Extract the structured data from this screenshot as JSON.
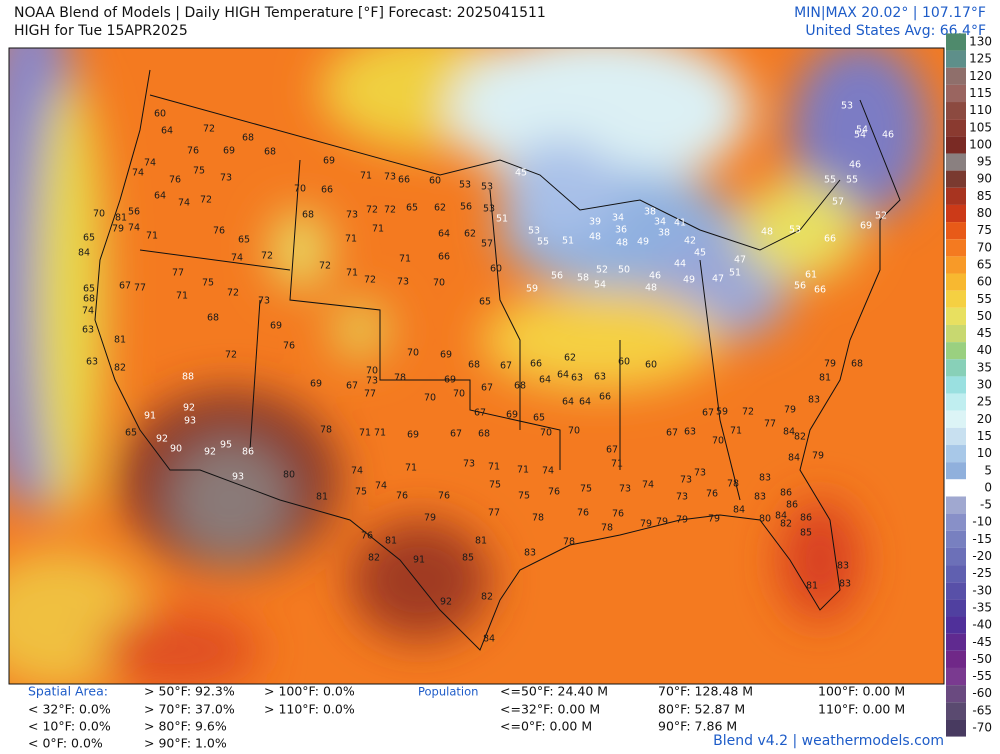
{
  "header": {
    "title": "NOAA Blend of Models | Daily HIGH Temperature [°F] Forecast: 2025041511",
    "subtitle": "HIGH for Tue 15APR2025",
    "minmax": "MIN|MAX 20.02° | 107.17°F",
    "average": "United States Avg: 66.4°F"
  },
  "map": {
    "stations": [
      60,
      64,
      72,
      68,
      76,
      69,
      68,
      74,
      75,
      73,
      74,
      76,
      64,
      74,
      72,
      70,
      81,
      56,
      79,
      74,
      65,
      71,
      76,
      65,
      84,
      74,
      72,
      77,
      75,
      72,
      71,
      67,
      77,
      65,
      68,
      68,
      73,
      74,
      63,
      81,
      63,
      82,
      72,
      69,
      76,
      88,
      92,
      91,
      93,
      65,
      92,
      90,
      95,
      92,
      86,
      93,
      69,
      71,
      73,
      66,
      66,
      70,
      73,
      72,
      72,
      65,
      62,
      56,
      53,
      60,
      53,
      53,
      45,
      51,
      68,
      71,
      71,
      64,
      62,
      57,
      72,
      71,
      72,
      71,
      73,
      70,
      66,
      60,
      65,
      59,
      56,
      58,
      54,
      53,
      55,
      51,
      39,
      48,
      34,
      36,
      48,
      49,
      38,
      34,
      38,
      41,
      42,
      45,
      44,
      46,
      52,
      50,
      48,
      49,
      47,
      51,
      47,
      48,
      53,
      57,
      55,
      55,
      46,
      54,
      53,
      54,
      46,
      52,
      69,
      66,
      61,
      66,
      56,
      71,
      73,
      71,
      71,
      74,
      76,
      76,
      75,
      75,
      76,
      75,
      73,
      74,
      77,
      78,
      76,
      78,
      76,
      79,
      79,
      76,
      81,
      82,
      91,
      85,
      81,
      83,
      78,
      92,
      82,
      84,
      81,
      80,
      74,
      75,
      74,
      73,
      73,
      73,
      76,
      78,
      83,
      83,
      86,
      86,
      84,
      80,
      82,
      86,
      85,
      83,
      83,
      81,
      84,
      79,
      79,
      79,
      79,
      84,
      82,
      84,
      79,
      83,
      81,
      79,
      68,
      70,
      69,
      68,
      67,
      69,
      67,
      68,
      64,
      64,
      63,
      63,
      62,
      66,
      60,
      60,
      70,
      70,
      67,
      69,
      65,
      64,
      64,
      66,
      70,
      70,
      67,
      71,
      67,
      63,
      70,
      71,
      67,
      59,
      72,
      77,
      73,
      70,
      77,
      78,
      67,
      69,
      78,
      71,
      71,
      69,
      67,
      68
    ],
    "colorbar": {
      "ticks": [
        130,
        125,
        120,
        115,
        110,
        105,
        100,
        95,
        90,
        85,
        80,
        75,
        70,
        65,
        60,
        55,
        50,
        45,
        40,
        35,
        30,
        25,
        20,
        15,
        10,
        5,
        0,
        -5,
        -10,
        -15,
        -20,
        -25,
        -30,
        -35,
        -40,
        -45,
        -50,
        -55,
        -60,
        -65,
        -70
      ],
      "colors": [
        "#4f8a6c",
        "#5e8f8a",
        "#8f6f6b",
        "#9a6560",
        "#8c4a40",
        "#8a3a30",
        "#7a2a24",
        "#8a8080",
        "#7a3a30",
        "#a83420",
        "#cc3a18",
        "#e85a18",
        "#f47a20",
        "#f89a28",
        "#f8b830",
        "#f5d042",
        "#e8e060",
        "#c8d870",
        "#9ad080",
        "#88d0b8",
        "#9ae0e0",
        "#c0eef0",
        "#dcf4f6",
        "#c8e0f0",
        "#a8c8e8",
        "#90b0dc",
        "#ffffff",
        "#a0a8d0",
        "#8890c8",
        "#7880c0",
        "#6c70b8",
        "#6060b0",
        "#5850a8",
        "#5040a0",
        "#50309a",
        "#602a90",
        "#702888",
        "#7a3a90",
        "#6a4a80",
        "#5a4a70",
        "#483a60"
      ]
    }
  },
  "stats": {
    "area_label": "Spatial Area:",
    "area": [
      "> 50°F: 92.3%",
      "> 100°F: 0.0%",
      "< 32°F: 0.0%",
      "> 70°F: 37.0%",
      "> 110°F: 0.0%",
      "< 10°F: 0.0%",
      "> 80°F: 9.6%",
      "< 0°F: 0.0%",
      "> 90°F: 1.0%"
    ],
    "population_label": "Population",
    "population": [
      "<=50°F: 24.40 M",
      "70°F: 128.48 M",
      "100°F: 0.00 M",
      "<=32°F: 0.00 M",
      "80°F: 52.87 M",
      "110°F: 0.00 M",
      "<=0°F: 0.00 M",
      "90°F: 7.86 M"
    ]
  },
  "footer": "Blend v4.2 | weathermodels.com"
}
